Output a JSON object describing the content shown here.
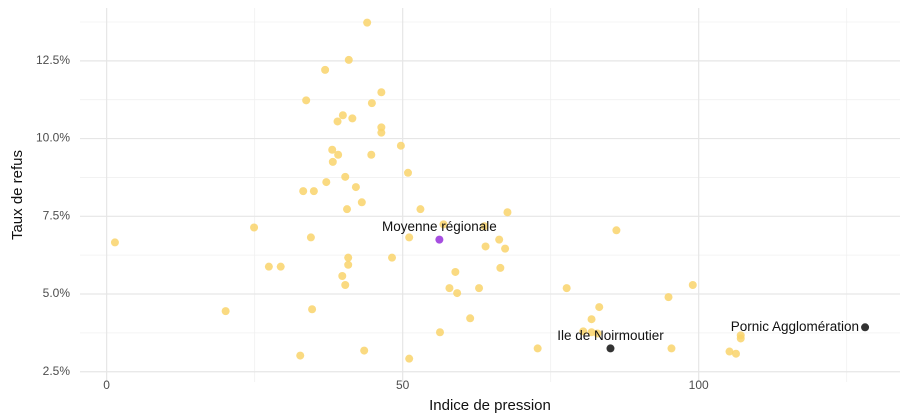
{
  "chart_data": {
    "type": "scatter",
    "x_label": "Indice de pression",
    "y_label": "Taux de refus",
    "xlim": [
      -4.5,
      134
    ],
    "ylim": [
      2.17,
      14.2
    ],
    "xticks": [
      0,
      50,
      100
    ],
    "yticks": [
      {
        "value": 2.5,
        "label": "2.5%"
      },
      {
        "value": 5,
        "label": "5.0%"
      },
      {
        "value": 7.5,
        "label": "7.5%"
      },
      {
        "value": 10,
        "label": "10.0%"
      },
      {
        "value": 12.5,
        "label": "12.5%"
      }
    ],
    "x_minor_ticks": [
      25,
      75,
      125
    ],
    "y_minor_ticks": [
      3.75,
      6.25,
      8.75,
      11.25,
      13.75
    ],
    "grid": true,
    "series": [
      {
        "color": "#f9d36b",
        "x": [
          44.0,
          40.9,
          36.9,
          33.7,
          46.4,
          44.8,
          39.9,
          41.5,
          39.0,
          46.4,
          46.4,
          49.7,
          38.1,
          39.1,
          44.7,
          38.2,
          50.9,
          37.1,
          40.3,
          42.1,
          33.2,
          35.0,
          43.1,
          53.0,
          40.6,
          67.7,
          24.9,
          56.9,
          63.8,
          86.1,
          1.4,
          34.5,
          51.1,
          66.3,
          64.0,
          67.3,
          40.8,
          40.8,
          48.2,
          27.4,
          29.4,
          66.5,
          58.9,
          39.8,
          40.3,
          57.9,
          62.9,
          77.7,
          59.2,
          99.0,
          94.9,
          83.2,
          34.7,
          20.1,
          61.4,
          81.9,
          56.3,
          80.5,
          81.9,
          82.9,
          107.1,
          107.1,
          72.8,
          95.4,
          43.5,
          105.2,
          106.3,
          32.7,
          51.1
        ],
        "values": [
          13.73,
          12.53,
          12.21,
          11.23,
          11.49,
          11.14,
          10.75,
          10.65,
          10.55,
          10.36,
          10.19,
          9.77,
          9.64,
          9.48,
          9.48,
          9.25,
          8.9,
          8.6,
          8.77,
          8.44,
          8.31,
          8.31,
          7.95,
          7.73,
          7.73,
          7.63,
          7.14,
          7.24,
          7.18,
          7.05,
          6.66,
          6.82,
          6.82,
          6.75,
          6.53,
          6.46,
          6.17,
          5.94,
          6.17,
          5.88,
          5.88,
          5.84,
          5.71,
          5.58,
          5.29,
          5.19,
          5.19,
          5.19,
          5.03,
          5.29,
          4.9,
          4.58,
          4.51,
          4.45,
          4.22,
          4.19,
          3.77,
          3.8,
          3.77,
          3.73,
          3.67,
          3.57,
          3.25,
          3.25,
          3.18,
          3.15,
          3.08,
          3.02,
          2.92
        ]
      },
      {
        "color": "#a64ee0",
        "x": [
          56.2
        ],
        "values": [
          6.75
        ],
        "labels": [
          "Moyenne régionale"
        ]
      },
      {
        "color": "#333333",
        "x": [
          85.1,
          128.1
        ],
        "values": [
          3.25,
          3.93
        ],
        "labels": [
          "Ile de Noirmoutier",
          "Pornic Agglomération"
        ]
      }
    ]
  }
}
